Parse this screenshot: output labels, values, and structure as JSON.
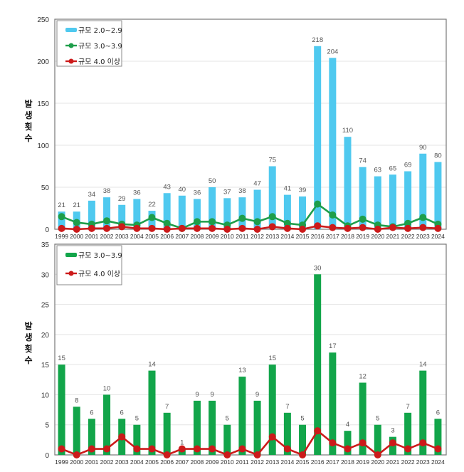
{
  "chart_data": [
    {
      "type": "bar",
      "title": "",
      "xlabel": "",
      "ylabel": "발생횟수",
      "ylim": [
        0,
        250
      ],
      "yticks": [
        "0",
        "50",
        "100",
        "150",
        "200",
        "250"
      ],
      "grid": true,
      "legend_position": "top-left",
      "categories": [
        "1999",
        "2000",
        "2001",
        "2002",
        "2003",
        "2004",
        "2005",
        "2006",
        "2007",
        "2008",
        "2009",
        "2010",
        "2011",
        "2012",
        "2013",
        "2014",
        "2015",
        "2016",
        "2017",
        "2018",
        "2019",
        "2020",
        "2021",
        "2022",
        "2023",
        "2024"
      ],
      "series": [
        {
          "name": "규모 2.0~2.9",
          "kind": "bar",
          "color": "#4fc9ef",
          "values": [
            21,
            21,
            34,
            38,
            29,
            36,
            22,
            43,
            40,
            36,
            50,
            37,
            38,
            47,
            75,
            41,
            39,
            218,
            204,
            110,
            74,
            63,
            65,
            69,
            90,
            80
          ],
          "labels": [
            "21",
            "21",
            "34",
            "38",
            "29",
            "36",
            "22",
            "43",
            "40",
            "36",
            "50",
            "37",
            "38",
            "47",
            "75",
            "41",
            "39",
            "218",
            "204",
            "110",
            "74",
            "63",
            "65",
            "69",
            "90",
            "80"
          ]
        },
        {
          "name": "규모 3.0~3.9",
          "kind": "line",
          "color": "#1e9e4a",
          "values": [
            15,
            8,
            6,
            10,
            6,
            5,
            14,
            7,
            1,
            9,
            9,
            5,
            13,
            9,
            15,
            7,
            5,
            30,
            17,
            4,
            12,
            5,
            3,
            7,
            14,
            6
          ]
        },
        {
          "name": "규모 4.0 이상",
          "kind": "line",
          "color": "#cc1a1a",
          "values": [
            1,
            0,
            1,
            1,
            3,
            1,
            1,
            0,
            1,
            1,
            1,
            0,
            1,
            0,
            3,
            1,
            0,
            4,
            2,
            1,
            2,
            0,
            2,
            1,
            2,
            1
          ]
        }
      ]
    },
    {
      "type": "bar",
      "title": "",
      "xlabel": "",
      "ylabel": "발생횟수",
      "ylim": [
        0,
        35
      ],
      "yticks": [
        "0",
        "5",
        "10",
        "15",
        "20",
        "25",
        "30",
        "35"
      ],
      "grid": true,
      "legend_position": "top-left",
      "categories": [
        "1999",
        "2000",
        "2001",
        "2002",
        "2003",
        "2004",
        "2005",
        "2006",
        "2007",
        "2008",
        "2009",
        "2010",
        "2011",
        "2012",
        "2013",
        "2014",
        "2015",
        "2016",
        "2017",
        "2018",
        "2019",
        "2020",
        "2021",
        "2022",
        "2023",
        "2024"
      ],
      "series": [
        {
          "name": "규모 3.0~3.9",
          "kind": "bar",
          "color": "#12a54a",
          "values": [
            15,
            8,
            6,
            10,
            6,
            5,
            14,
            7,
            1,
            9,
            9,
            5,
            13,
            9,
            15,
            7,
            5,
            30,
            17,
            4,
            12,
            5,
            3,
            7,
            14,
            6
          ],
          "labels": [
            "15",
            "8",
            "6",
            "10",
            "6",
            "5",
            "14",
            "7",
            "1",
            "9",
            "9",
            "5",
            "13",
            "9",
            "15",
            "7",
            "5",
            "30",
            "17",
            "4",
            "12",
            "5",
            "3",
            "7",
            "14",
            "6"
          ]
        },
        {
          "name": "규모 4.0 이상",
          "kind": "line",
          "color": "#cc1a1a",
          "values": [
            1,
            0,
            1,
            1,
            3,
            1,
            1,
            0,
            1,
            1,
            1,
            0,
            1,
            0,
            3,
            1,
            0,
            4,
            2,
            1,
            2,
            0,
            2,
            1,
            2,
            1
          ]
        }
      ]
    }
  ],
  "ylabel_chars": [
    "발",
    "생",
    "횟",
    "수"
  ]
}
